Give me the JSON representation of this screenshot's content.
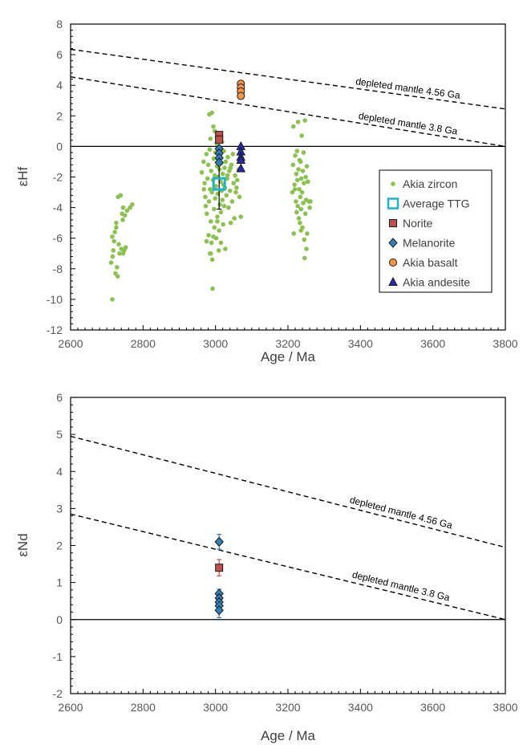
{
  "colors": {
    "zircon": "#8cc152",
    "ttg_edge": "#1fb2c8",
    "norite": "#c0504d",
    "melanorite": "#2f7fb8",
    "basalt": "#f79646",
    "andesite": "#2a2ab0",
    "marker_edge": "#1a1a1a"
  },
  "chart_data": [
    {
      "type": "scatter",
      "xlabel": "Age / Ma",
      "ylabel": "εHf",
      "xlim": [
        2600,
        3800
      ],
      "ylim": [
        -12,
        8
      ],
      "x_ticks": [
        2600,
        2800,
        3000,
        3200,
        3400,
        3600,
        3800
      ],
      "y_ticks": [
        -12,
        -10,
        -8,
        -6,
        -4,
        -2,
        0,
        2,
        4,
        6,
        8
      ],
      "legend_position": "right",
      "reference_lines": [
        {
          "label": "depleted mantle 4.56 Ga",
          "x": [
            2600,
            3800
          ],
          "y": [
            6.35,
            2.45
          ]
        },
        {
          "label": "depleted mantle 3.8 Ga",
          "x": [
            2600,
            3800
          ],
          "y": [
            4.55,
            0.0
          ]
        }
      ],
      "series": [
        {
          "name": "Akia zircon",
          "marker": "dot",
          "points": [
            [
              2715,
              -10.0
            ],
            [
              2712,
              -7.6
            ],
            [
              2716,
              -7.2
            ],
            [
              2718,
              -6.8
            ],
            [
              2720,
              -6.2
            ],
            [
              2715,
              -5.9
            ],
            [
              2722,
              -5.6
            ],
            [
              2726,
              -5.3
            ],
            [
              2724,
              -8.3
            ],
            [
              2730,
              -8.5
            ],
            [
              2728,
              -7.9
            ],
            [
              2735,
              -7.0
            ],
            [
              2733,
              -6.4
            ],
            [
              2731,
              -3.3
            ],
            [
              2738,
              -3.2
            ],
            [
              2742,
              -4.4
            ],
            [
              2744,
              -4.8
            ],
            [
              2740,
              -6.7
            ],
            [
              2745,
              -7.0
            ],
            [
              2748,
              -6.8
            ],
            [
              2752,
              -6.6
            ],
            [
              2750,
              -4.5
            ],
            [
              2756,
              -4.2
            ],
            [
              2764,
              -4.0
            ],
            [
              2770,
              -3.8
            ],
            [
              2726,
              -5.0
            ],
            [
              2745,
              -4.0
            ],
            [
              2962,
              -1.7
            ],
            [
              2967,
              -1.0
            ],
            [
              2970,
              -2.4
            ],
            [
              2972,
              -3.3
            ],
            [
              2975,
              -0.5
            ],
            [
              2976,
              -4.4
            ],
            [
              2978,
              -2.1
            ],
            [
              2980,
              -1.2
            ],
            [
              2981,
              -5.8
            ],
            [
              2982,
              -3.6
            ],
            [
              2984,
              -0.2
            ],
            [
              2985,
              -2.8
            ],
            [
              2986,
              0.5
            ],
            [
              2987,
              -4.9
            ],
            [
              2988,
              -1.6
            ],
            [
              2989,
              -6.3
            ],
            [
              2990,
              -3.0
            ],
            [
              2991,
              -7.4
            ],
            [
              2992,
              -9.3
            ],
            [
              2993,
              -2.2
            ],
            [
              2994,
              1.3
            ],
            [
              2995,
              -0.8
            ],
            [
              2996,
              -4.1
            ],
            [
              2997,
              -5.3
            ],
            [
              2998,
              -1.9
            ],
            [
              2999,
              -3.4
            ],
            [
              3000,
              -0.4
            ],
            [
              3001,
              -2.6
            ],
            [
              3002,
              -6.0
            ],
            [
              3003,
              0.2
            ],
            [
              3004,
              -1.3
            ],
            [
              3005,
              -4.6
            ],
            [
              3006,
              -3.1
            ],
            [
              3007,
              -2.0
            ],
            [
              3008,
              -0.9
            ],
            [
              3010,
              -5.5
            ],
            [
              3011,
              -1.5
            ],
            [
              3012,
              -3.8
            ],
            [
              3013,
              -0.6
            ],
            [
              3014,
              -2.3
            ],
            [
              3015,
              -4.3
            ],
            [
              3016,
              -1.1
            ],
            [
              3017,
              -2.9
            ],
            [
              3018,
              0.3
            ],
            [
              3019,
              -3.5
            ],
            [
              3020,
              -1.8
            ],
            [
              3021,
              -5.1
            ],
            [
              3022,
              -2.5
            ],
            [
              3023,
              -0.3
            ],
            [
              3024,
              -3.9
            ],
            [
              3025,
              -1.4
            ],
            [
              3026,
              -2.7
            ],
            [
              3027,
              -6.7
            ],
            [
              3028,
              -1.0
            ],
            [
              3030,
              -3.2
            ],
            [
              3032,
              -2.1
            ],
            [
              3034,
              -0.7
            ],
            [
              3036,
              -4.0
            ],
            [
              3038,
              -1.6
            ],
            [
              3040,
              -2.9
            ],
            [
              3042,
              -5.0
            ],
            [
              3044,
              -1.2
            ],
            [
              3046,
              -3.6
            ],
            [
              3048,
              -0.5
            ],
            [
              3050,
              -2.4
            ],
            [
              3052,
              -4.7
            ],
            [
              3054,
              -1.9
            ],
            [
              3056,
              -3.0
            ],
            [
              3060,
              -2.2
            ],
            [
              3064,
              -1.5
            ],
            [
              3070,
              -4.6
            ],
            [
              2983,
              2.1
            ],
            [
              2990,
              2.2
            ],
            [
              2985,
              -7.0
            ],
            [
              2975,
              -6.2
            ],
            [
              3005,
              -4.9
            ],
            [
              3015,
              -6.3
            ],
            [
              3003,
              0.9
            ],
            [
              2998,
              1.0
            ],
            [
              2968,
              -2.8
            ],
            [
              2973,
              -3.9
            ],
            [
              3033,
              -1.9
            ],
            [
              3041,
              -1.4
            ],
            [
              3058,
              -2.7
            ],
            [
              3066,
              -3.3
            ],
            [
              2994,
              -5.9
            ],
            [
              3009,
              -6.8
            ],
            [
              2987,
              -7.0
            ],
            [
              3212,
              -3.0
            ],
            [
              3214,
              -1.2
            ],
            [
              3215,
              1.3
            ],
            [
              3216,
              -5.7
            ],
            [
              3218,
              -2.5
            ],
            [
              3220,
              -0.6
            ],
            [
              3222,
              -3.6
            ],
            [
              3223,
              -1.8
            ],
            [
              3224,
              -4.3
            ],
            [
              3225,
              -0.3
            ],
            [
              3226,
              -2.2
            ],
            [
              3227,
              -3.9
            ],
            [
              3228,
              1.6
            ],
            [
              3229,
              -1.5
            ],
            [
              3230,
              -4.7
            ],
            [
              3231,
              -2.8
            ],
            [
              3232,
              -0.9
            ],
            [
              3233,
              -5.0
            ],
            [
              3234,
              -3.3
            ],
            [
              3235,
              -1.0
            ],
            [
              3236,
              -4.1
            ],
            [
              3237,
              -2.1
            ],
            [
              3238,
              0.7
            ],
            [
              3239,
              -3.0
            ],
            [
              3240,
              -5.3
            ],
            [
              3241,
              -1.6
            ],
            [
              3242,
              -3.7
            ],
            [
              3243,
              -0.4
            ],
            [
              3244,
              -2.4
            ],
            [
              3245,
              -6.1
            ],
            [
              3246,
              -7.3
            ],
            [
              3247,
              1.7
            ],
            [
              3248,
              -4.4
            ],
            [
              3249,
              -2.0
            ],
            [
              3250,
              -3.5
            ],
            [
              3251,
              -6.7
            ],
            [
              3252,
              -1.3
            ],
            [
              3253,
              -5.7
            ],
            [
              3255,
              -2.3
            ],
            [
              3258,
              -3.6
            ],
            [
              3260,
              -4.0
            ],
            [
              3262,
              -3.6
            ],
            [
              3219,
              -2.8
            ],
            [
              3236,
              -5.5
            ]
          ]
        },
        {
          "name": "Average TTG",
          "marker": "square-open",
          "points": [
            [
              3010,
              -2.45
            ]
          ],
          "error_y": [
            [
              1.65,
              1.6
            ]
          ]
        },
        {
          "name": "Norite",
          "marker": "square",
          "points": [
            [
              3010,
              0.75
            ],
            [
              3010,
              0.45
            ]
          ]
        },
        {
          "name": "Melanorite",
          "marker": "diamond",
          "points": [
            [
              3010,
              -0.15
            ],
            [
              3010,
              -0.45
            ],
            [
              3010,
              -0.75
            ],
            [
              3010,
              -1.05
            ]
          ]
        },
        {
          "name": "Akia basalt",
          "marker": "circle",
          "points": [
            [
              3070,
              4.1
            ],
            [
              3070,
              3.85
            ],
            [
              3070,
              3.6
            ],
            [
              3070,
              3.3
            ]
          ]
        },
        {
          "name": "Akia andesite",
          "marker": "triangle",
          "points": [
            [
              3070,
              0.0
            ],
            [
              3070,
              -0.35
            ],
            [
              3070,
              -0.7
            ],
            [
              3070,
              -0.9
            ],
            [
              3070,
              -1.45
            ]
          ]
        }
      ]
    },
    {
      "type": "scatter",
      "xlabel": "Age / Ma",
      "ylabel": "εNd",
      "xlim": [
        2600,
        3800
      ],
      "ylim": [
        -2,
        6
      ],
      "x_ticks": [
        2600,
        2800,
        3000,
        3200,
        3400,
        3600,
        3800
      ],
      "y_ticks": [
        -2,
        -1,
        0,
        1,
        2,
        3,
        4,
        5,
        6
      ],
      "reference_lines": [
        {
          "label": "depleted mantle 4.56 Ga",
          "x": [
            2600,
            3800
          ],
          "y": [
            4.95,
            1.95
          ]
        },
        {
          "label": "depleted mantle 3.8 Ga",
          "x": [
            2600,
            3800
          ],
          "y": [
            2.85,
            0.0
          ]
        }
      ],
      "series": [
        {
          "name": "Norite",
          "marker": "square",
          "points": [
            [
              3010,
              1.4
            ]
          ],
          "error_y": [
            [
              0.22,
              0.22
            ]
          ]
        },
        {
          "name": "Melanorite",
          "marker": "diamond",
          "points": [
            [
              3010,
              2.1
            ],
            [
              3010,
              0.7
            ],
            [
              3010,
              0.58
            ],
            [
              3010,
              0.47
            ],
            [
              3010,
              0.37
            ],
            [
              3010,
              0.25
            ]
          ],
          "error_y": [
            [
              0.2,
              0.2
            ],
            [
              0.12,
              0.12
            ],
            [
              0.12,
              0.12
            ],
            [
              0.12,
              0.12
            ],
            [
              0.12,
              0.12
            ],
            [
              0.2,
              0.2
            ]
          ]
        }
      ]
    }
  ]
}
